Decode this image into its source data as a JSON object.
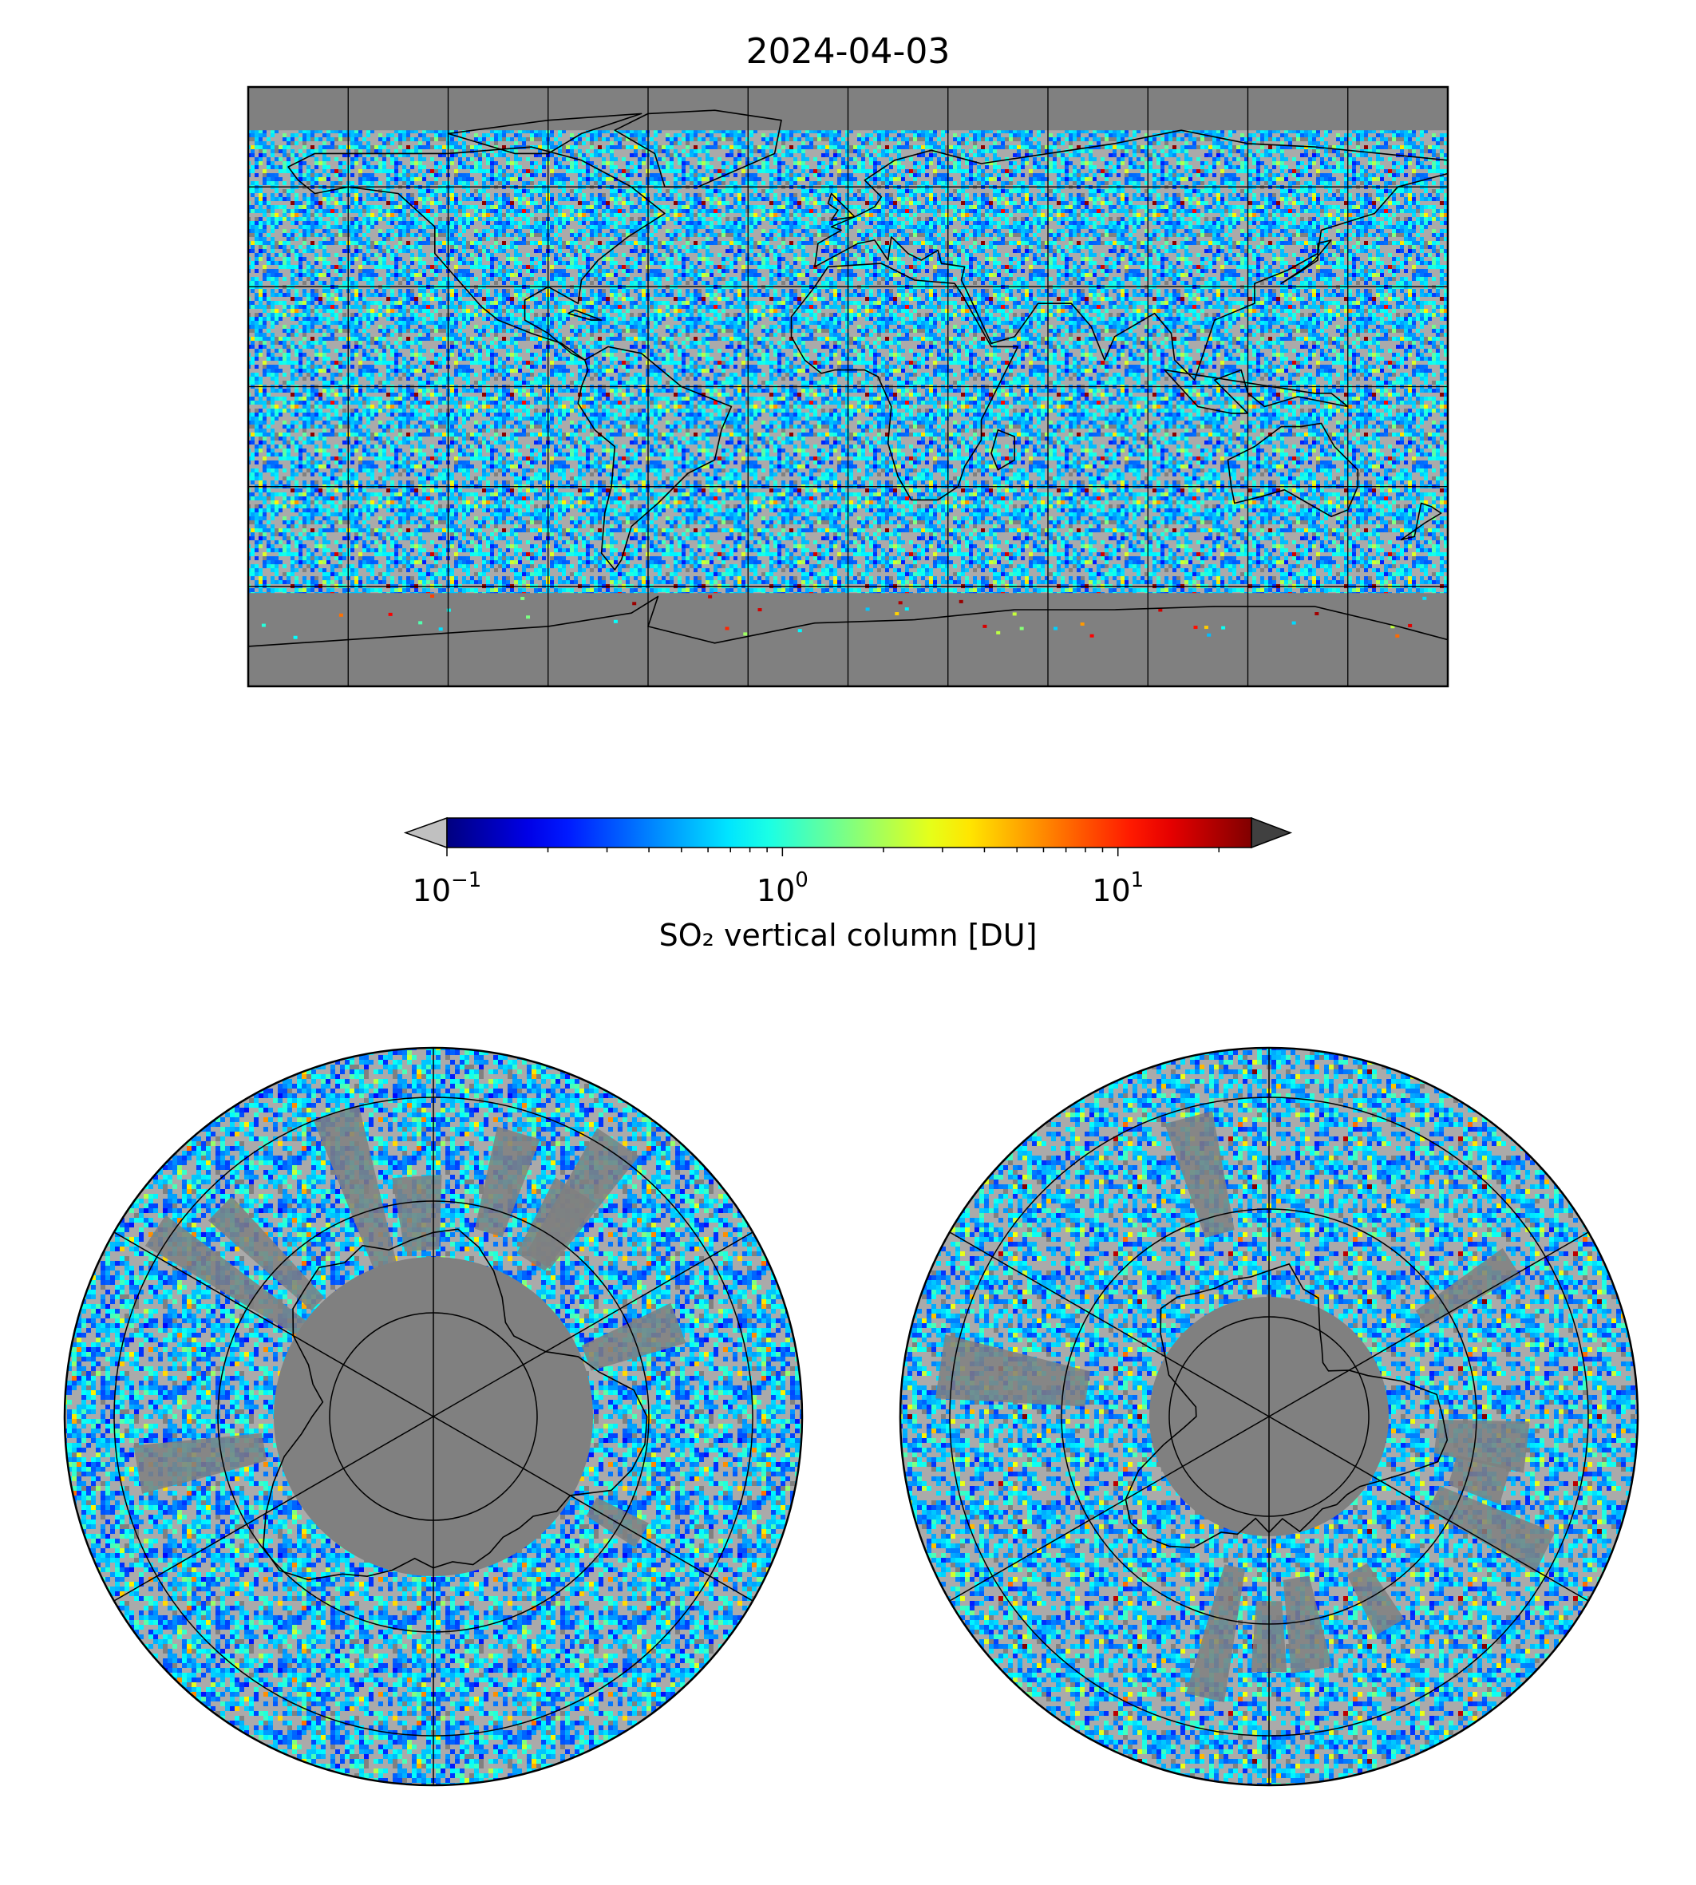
{
  "title": "2024-04-03",
  "map_style": {
    "ocean_no_data": "#808080",
    "low_value": "#aaaaaa",
    "coastline": "#000000",
    "grid": "#000000"
  },
  "colorbar": {
    "label": "SO₂ vertical column [DU]",
    "scale": "log",
    "range_du": [
      0.1,
      25
    ],
    "colormap": "jet",
    "extend_low_color": "#c0c0c0",
    "extend_high_color": "#404040",
    "ticks": [
      {
        "base": "10",
        "exp": "−1",
        "value": 0.1
      },
      {
        "base": "10",
        "exp": "0",
        "value": 1
      },
      {
        "base": "10",
        "exp": "1",
        "value": 10
      }
    ]
  },
  "maps": {
    "world": {
      "projection": "plate carree",
      "graticule_deg": 30,
      "lat_range": [
        -90,
        90
      ],
      "lon_range": [
        -180,
        180
      ]
    },
    "north": {
      "projection": "north polar stereographic",
      "lat_rings": [
        30,
        50,
        70
      ]
    },
    "south": {
      "projection": "south polar stereographic",
      "lat_rings": [
        -30,
        -50,
        -70
      ]
    }
  }
}
